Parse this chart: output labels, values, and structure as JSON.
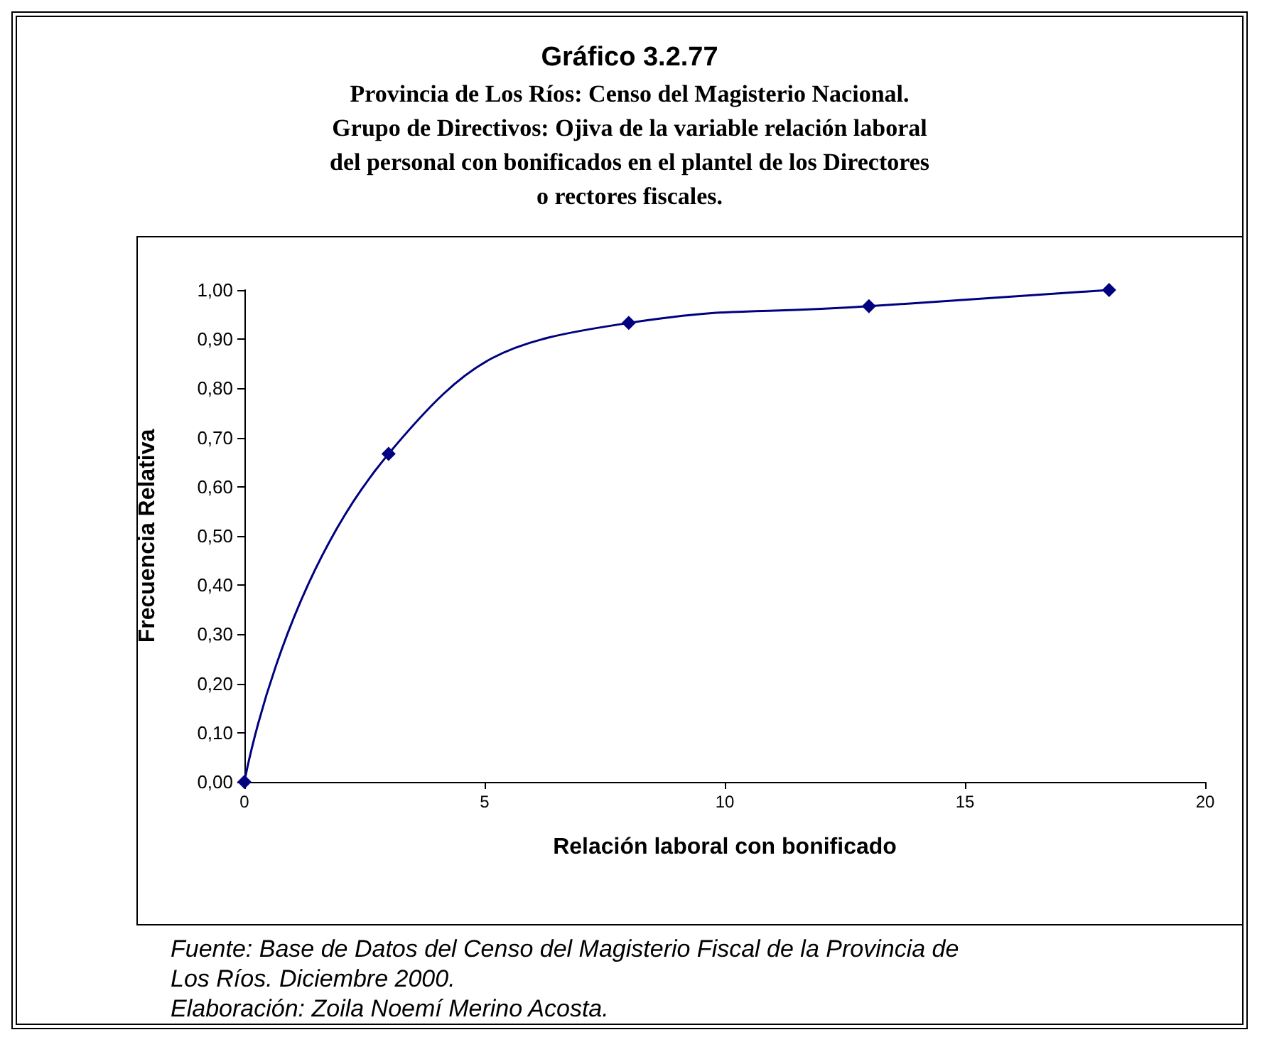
{
  "chart_data": {
    "type": "line",
    "title": "Gráfico 3.2.77",
    "subtitle": "Provincia de Los Ríos: Censo del Magisterio Nacional.\nGrupo de Directivos: Ojiva de la variable relación laboral\ndel personal con bonificados en el plantel de los Directores\no rectores fiscales.",
    "xlabel": "Relación laboral con bonificado",
    "ylabel": "Frecuencia Relativa",
    "x": [
      0,
      3,
      8,
      13,
      18
    ],
    "series": [
      {
        "color": "#000080",
        "values": [
          0,
          0.667,
          0.933,
          0.967,
          1.0
        ]
      }
    ],
    "xlim": [
      0,
      20
    ],
    "xticks": [
      0,
      5,
      10,
      15,
      20
    ],
    "ylim": [
      0,
      1
    ],
    "yticks": [
      {
        "value": 0,
        "label": "0,00"
      },
      {
        "value": 0.1,
        "label": "0,10"
      },
      {
        "value": 0.2,
        "label": "0,20"
      },
      {
        "value": 0.3,
        "label": "0,30"
      },
      {
        "value": 0.4,
        "label": "0,40"
      },
      {
        "value": 0.5,
        "label": "0,50"
      },
      {
        "value": 0.6,
        "label": "0,60"
      },
      {
        "value": 0.7,
        "label": "0,70"
      },
      {
        "value": 0.8,
        "label": "0,80"
      },
      {
        "value": 0.9,
        "label": "0,90"
      },
      {
        "value": 1,
        "label": "1,00"
      }
    ],
    "grid": false,
    "marker": "diamond",
    "line_style": "solid",
    "annotations": [
      "Fuente: Base de Datos del Censo del Magisterio Fiscal de la Provincia de Los Ríos. Diciembre 2000.",
      "Elaboración: Zoila Noemí Merino Acosta."
    ]
  }
}
